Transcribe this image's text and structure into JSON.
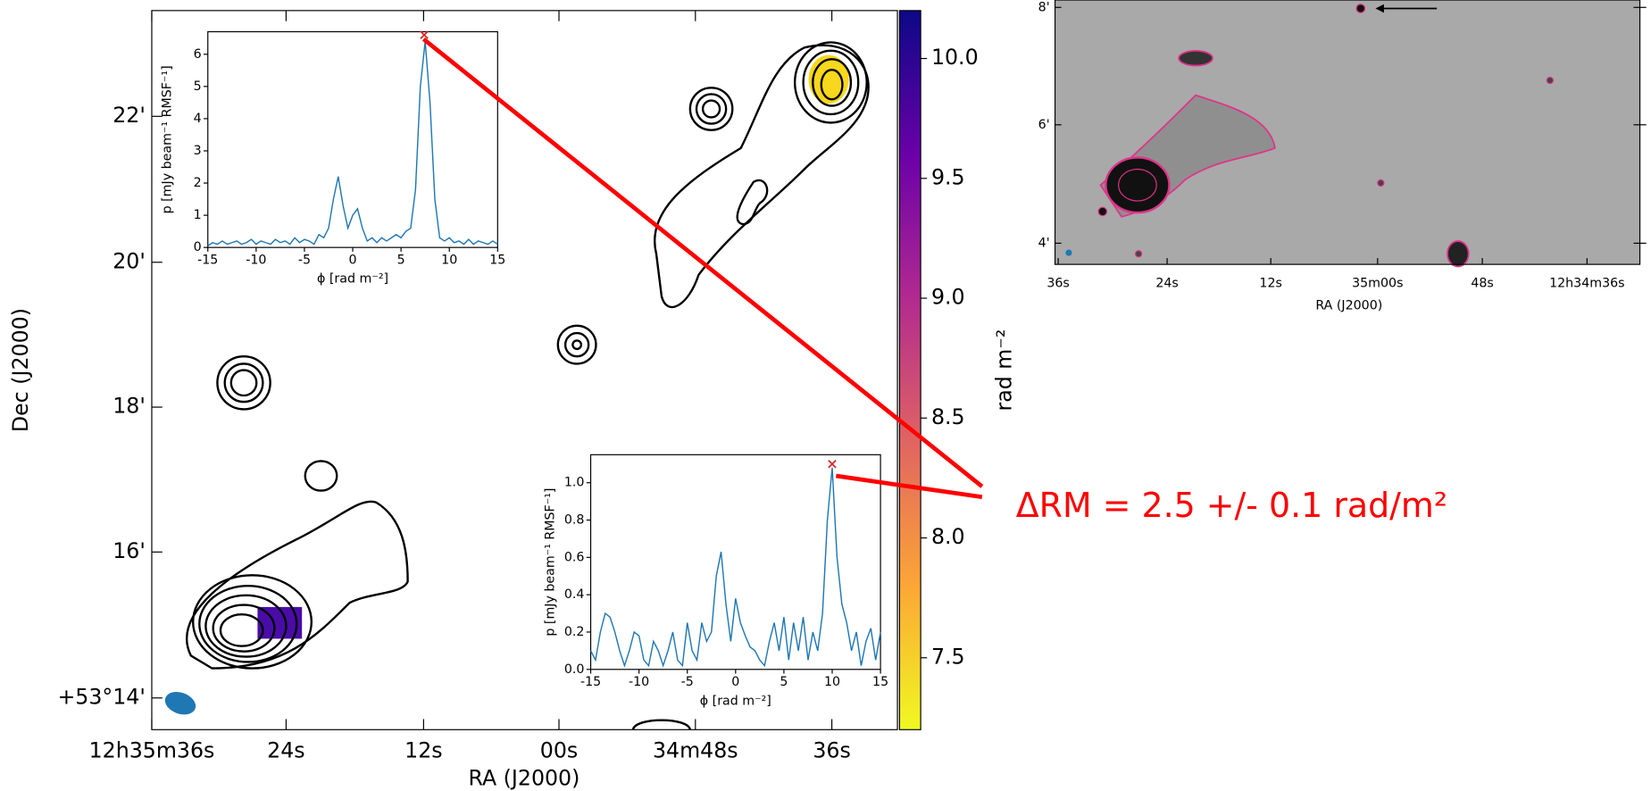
{
  "chart_data": [
    {
      "type": "map",
      "xlabel": "RA (J2000)",
      "ylabel": "Dec (J2000)",
      "xtick_labels": [
        "12h35m36s",
        "24s",
        "12s",
        "00s",
        "34m48s",
        "36s"
      ],
      "ytick_labels": [
        "22'",
        "20'",
        "18'",
        "16'",
        "+53°14'"
      ],
      "colorbar": {
        "label": "rad m⁻²",
        "lim": [
          7.2,
          10.2
        ],
        "ticks": [
          7.5,
          {
            "value": 8,
            "label": "8.0"
          },
          8.5,
          {
            "value": 9,
            "label": "9.0"
          },
          9.5,
          {
            "value": 10,
            "label": "10.0"
          }
        ],
        "colormap": [
          "#f0f921",
          "#fca636",
          "#e16462",
          "#b12a90",
          "#6a00a8",
          "#0d0887"
        ]
      }
    },
    {
      "type": "line",
      "xlabel": "ϕ [rad m⁻²]",
      "ylabel": "p [mJy beam⁻¹ RMSF⁻¹]",
      "xlim": [
        -15,
        15
      ],
      "ylim": [
        0,
        6.7
      ],
      "xticks": [
        -15,
        -10,
        -5,
        0,
        5,
        10,
        15
      ],
      "yticks": [
        0,
        1,
        2,
        3,
        4,
        5,
        6
      ],
      "x": [
        -15,
        -14.5,
        -14,
        -13.5,
        -13,
        -12.5,
        -12,
        -11.5,
        -11,
        -10.5,
        -10,
        -9.5,
        -9,
        -8.5,
        -8,
        -7.5,
        -7,
        -6.5,
        -6,
        -5.5,
        -5,
        -4.5,
        -4,
        -3.5,
        -3,
        -2.5,
        -2,
        -1.5,
        -1,
        -0.5,
        0,
        0.5,
        1,
        1.5,
        2,
        2.5,
        3,
        3.5,
        4,
        4.5,
        5,
        5.5,
        6,
        6.5,
        7,
        7.5,
        8,
        8.5,
        9,
        9.5,
        10,
        10.5,
        11,
        11.5,
        12,
        12.5,
        13,
        13.5,
        14,
        14.5,
        15
      ],
      "series": [
        {
          "color": "#1f77b4",
          "values": [
            0.05,
            0.15,
            0.1,
            0.2,
            0.1,
            0.15,
            0.2,
            0.1,
            0.15,
            0.25,
            0.1,
            0.2,
            0.15,
            0.1,
            0.25,
            0.15,
            0.2,
            0.1,
            0.3,
            0.15,
            0.25,
            0.2,
            0.1,
            0.4,
            0.3,
            0.6,
            1.5,
            2.2,
            1.3,
            0.6,
            1.0,
            1.2,
            0.6,
            0.2,
            0.3,
            0.15,
            0.3,
            0.2,
            0.3,
            0.4,
            0.3,
            0.5,
            0.6,
            1.8,
            5.0,
            6.4,
            4.5,
            1.5,
            0.3,
            0.2,
            0.3,
            0.15,
            0.2,
            0.1,
            0.25,
            0.1,
            0.2,
            0.15,
            0.1,
            0.2,
            0.1
          ]
        }
      ],
      "peak": {
        "x": 7.4,
        "y": 6.6,
        "color": "#d62728"
      }
    },
    {
      "type": "line",
      "xlabel": "ϕ [rad m⁻²]",
      "ylabel": "p [mJy beam⁻¹ RMSF⁻¹]",
      "xlim": [
        -15,
        15
      ],
      "ylim": [
        0,
        1.15
      ],
      "xticks": [
        -15,
        -10,
        -5,
        0,
        5,
        10,
        15
      ],
      "yticks": [
        {
          "value": 0,
          "label": "0.0"
        },
        0.2,
        0.4,
        0.6,
        0.8,
        {
          "value": 1,
          "label": "1.0"
        }
      ],
      "x": [
        -15,
        -14.5,
        -14,
        -13.5,
        -13,
        -12.5,
        -12,
        -11.5,
        -11,
        -10.5,
        -10,
        -9.5,
        -9,
        -8.5,
        -8,
        -7.5,
        -7,
        -6.5,
        -6,
        -5.5,
        -5,
        -4.5,
        -4,
        -3.5,
        -3,
        -2.5,
        -2,
        -1.5,
        -1,
        -0.5,
        0,
        0.5,
        1,
        1.5,
        2,
        2.5,
        3,
        3.5,
        4,
        4.5,
        5,
        5.5,
        6,
        6.5,
        7,
        7.5,
        8,
        8.5,
        9,
        9.5,
        10,
        10.5,
        11,
        11.5,
        12,
        12.5,
        13,
        13.5,
        14,
        14.5,
        15
      ],
      "series": [
        {
          "color": "#1f77b4",
          "values": [
            0.1,
            0.05,
            0.2,
            0.3,
            0.28,
            0.2,
            0.1,
            0.02,
            0.1,
            0.2,
            0.18,
            0.05,
            0.02,
            0.15,
            0.1,
            0.02,
            0.1,
            0.2,
            0.05,
            0.02,
            0.25,
            0.1,
            0.05,
            0.25,
            0.15,
            0.2,
            0.5,
            0.63,
            0.35,
            0.15,
            0.38,
            0.25,
            0.18,
            0.12,
            0.1,
            0.05,
            0.02,
            0.15,
            0.25,
            0.1,
            0.28,
            0.05,
            0.25,
            0.1,
            0.28,
            0.05,
            0.2,
            0.1,
            0.3,
            0.8,
            1.08,
            0.6,
            0.35,
            0.25,
            0.1,
            0.2,
            0.02,
            0.15,
            0.22,
            0.05,
            0.2
          ]
        }
      ],
      "peak": {
        "x": 10,
        "y": 1.1,
        "color": "#d62728"
      }
    },
    {
      "type": "image",
      "xlabel": "RA (J2000)",
      "xtick_labels": [
        "36s",
        "24s",
        "12s",
        "35m00s",
        "48s",
        "12h34m36s"
      ],
      "ytick_labels": [
        "8'",
        "6'",
        "4'"
      ]
    }
  ],
  "annotation": "ΔRM = 2.5 +/- 0.1 rad/m²"
}
